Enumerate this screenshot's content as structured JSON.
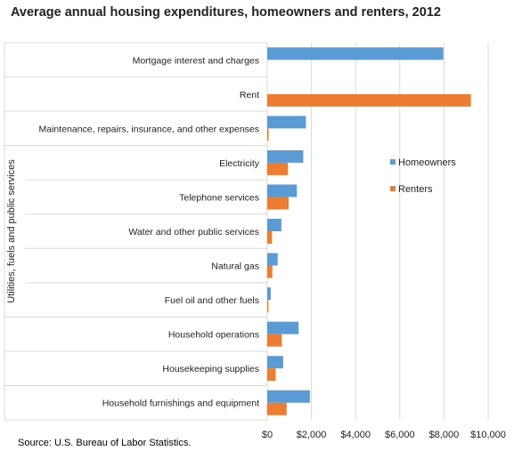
{
  "title": "Average annual housing expenditures, homeowners and renters, 2012",
  "source": "Source: U.S. Bureau of Labor Statistics.",
  "group_label": "Utilities, fuels and public services",
  "colors": {
    "homeowners": "#5B9BD5",
    "renters": "#ED7D31",
    "grid": "#D9D9D9"
  },
  "chart_data": {
    "type": "bar",
    "orientation": "horizontal",
    "title": "Average annual housing expenditures, homeowners and renters, 2012",
    "categories": [
      "Mortgage interest and charges",
      "Rent",
      "Maintenance, repairs, insurance, and other expenses",
      "Electricity",
      "Telephone services",
      "Water and other public services",
      "Natural gas",
      "Fuel oil and other fuels",
      "Household operations",
      "Housekeeping supplies",
      "Household furnishings and equipment"
    ],
    "series": [
      {
        "name": "Homeowners",
        "values": [
          7970,
          0,
          1750,
          1630,
          1340,
          640,
          470,
          160,
          1420,
          720,
          1930
        ]
      },
      {
        "name": "Renters",
        "values": [
          0,
          9220,
          60,
          930,
          970,
          210,
          230,
          50,
          660,
          380,
          880
        ]
      }
    ],
    "xlim": [
      0,
      10000
    ],
    "xticks": [
      "$0",
      "$2,000",
      "$4,000",
      "$6,000",
      "$8,000",
      "$10,000"
    ],
    "xtick_values": [
      0,
      2000,
      4000,
      6000,
      8000,
      10000
    ],
    "grid": true,
    "legend_position": "right",
    "group": {
      "label": "Utilities, fuels and public services",
      "from": 3,
      "to": 7
    }
  }
}
